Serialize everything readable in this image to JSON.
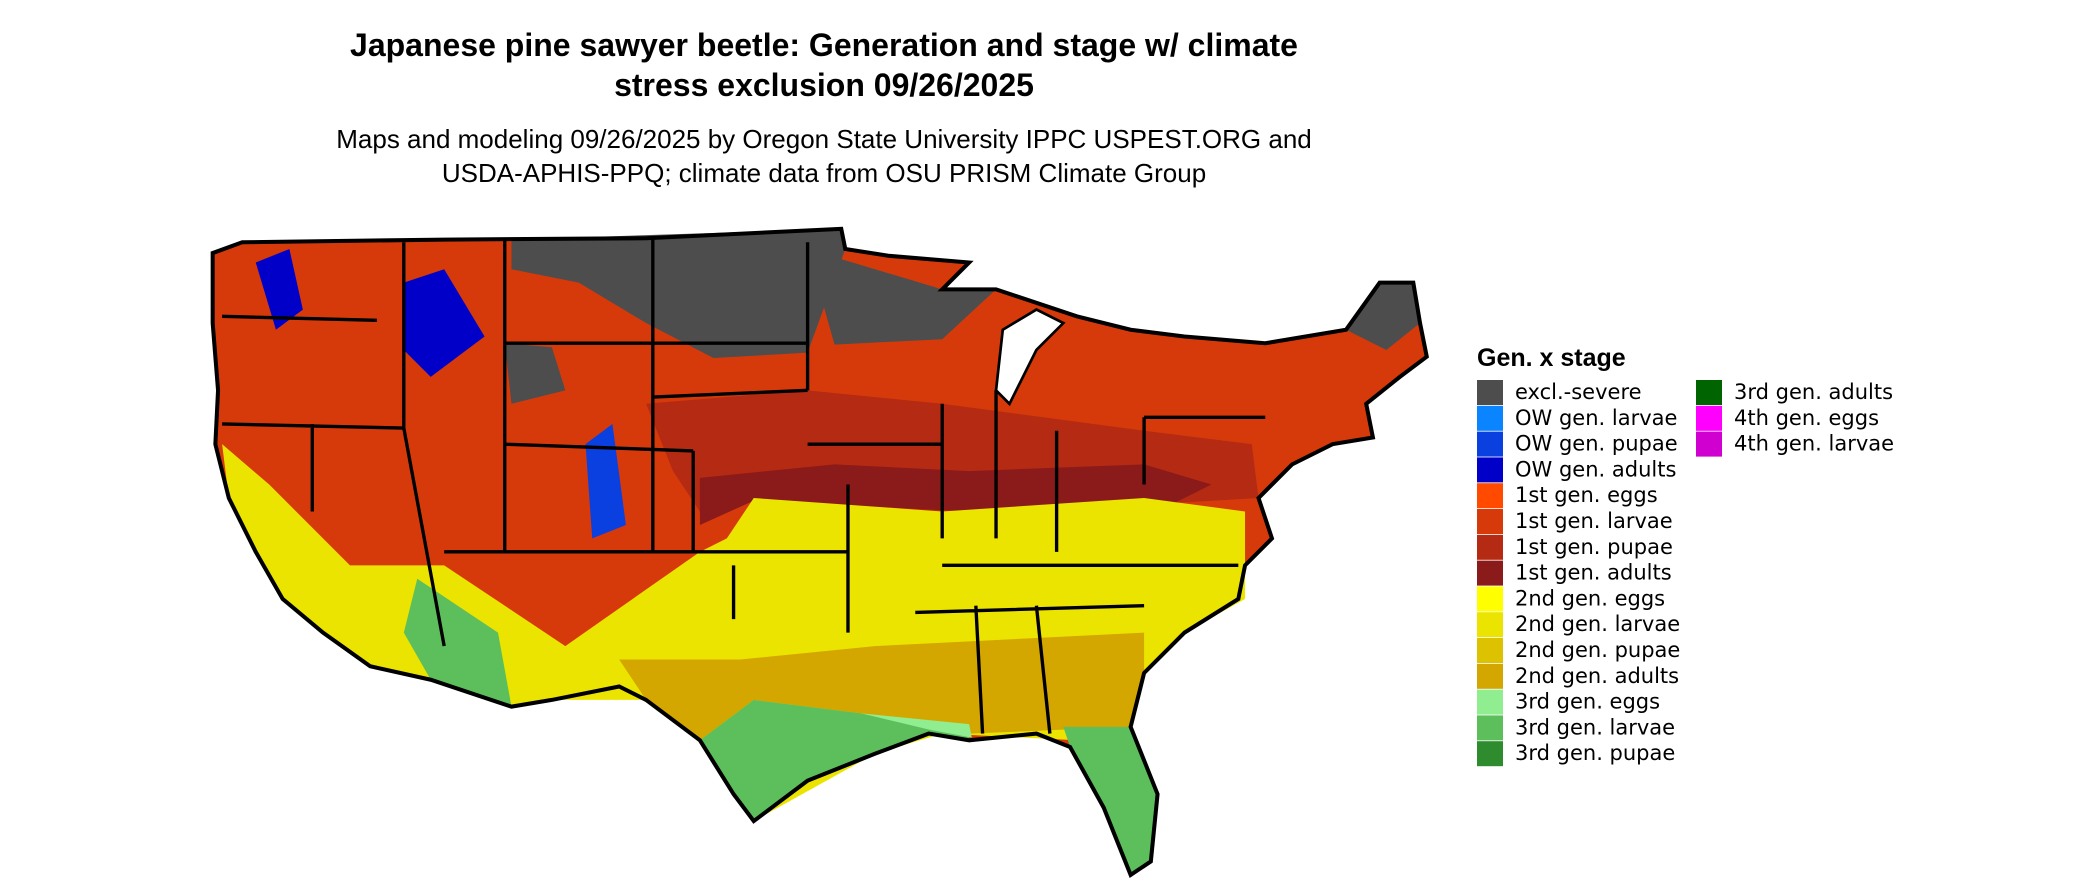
{
  "header": {
    "title_lines": [
      "Japanese pine sawyer beetle: Generation and stage w/ climate",
      "stress exclusion 09/26/2025"
    ],
    "subtitle_lines": [
      "Maps and modeling 09/26/2025 by Oregon State University IPPC USPEST.ORG and",
      "USDA-APHIS-PPQ; climate data from OSU PRISM Climate Group"
    ]
  },
  "legend": {
    "title": "Gen. x stage",
    "items": [
      {
        "label": "excl.-severe",
        "color": "#4d4d4d"
      },
      {
        "label": "OW gen. larvae",
        "color": "#0a84ff"
      },
      {
        "label": "OW gen. pupae",
        "color": "#0a3fe0"
      },
      {
        "label": "OW gen. adults",
        "color": "#0000c8"
      },
      {
        "label": "1st gen. eggs",
        "color": "#ff4a00"
      },
      {
        "label": "1st gen. larvae",
        "color": "#d63a0a"
      },
      {
        "label": "1st gen. pupae",
        "color": "#b52a12"
      },
      {
        "label": "1st gen. adults",
        "color": "#8b1a1a"
      },
      {
        "label": "2nd gen. eggs",
        "color": "#ffff00"
      },
      {
        "label": "2nd gen. larvae",
        "color": "#ebe400"
      },
      {
        "label": "2nd gen. pupae",
        "color": "#dcc200"
      },
      {
        "label": "2nd gen. adults",
        "color": "#d4a600"
      },
      {
        "label": "3rd gen. eggs",
        "color": "#90ee90"
      },
      {
        "label": "3rd gen. larvae",
        "color": "#5cbf5c"
      },
      {
        "label": "3rd gen. pupae",
        "color": "#2e8b2e"
      },
      {
        "label": "3rd gen. adults",
        "color": "#006400"
      },
      {
        "label": "4th gen. eggs",
        "color": "#ff00ff"
      },
      {
        "label": "4th gen. larvae",
        "color": "#d000d0"
      }
    ]
  }
}
